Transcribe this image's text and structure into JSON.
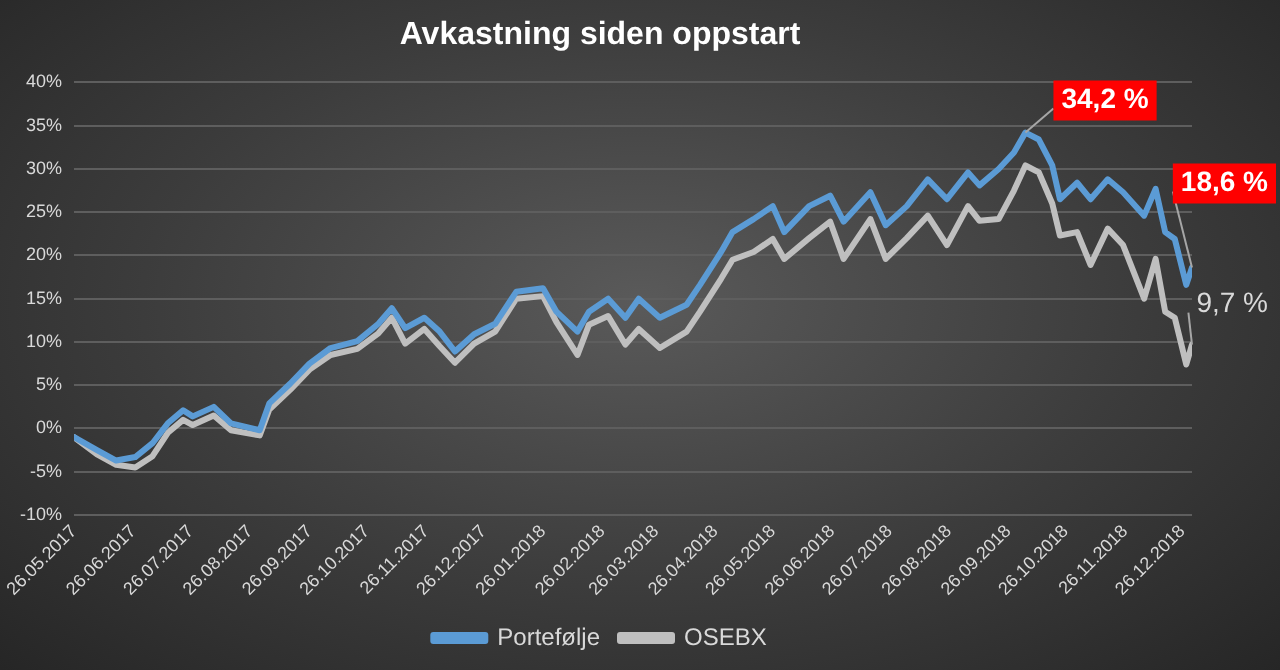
{
  "chart_data": {
    "type": "line",
    "title": "Avkastning siden oppstart",
    "x": [
      "2017-05-26",
      "2017-06-07",
      "2017-06-17",
      "2017-06-27",
      "2017-07-06",
      "2017-07-14",
      "2017-07-22",
      "2017-07-27",
      "2017-08-07",
      "2017-08-16",
      "2017-08-31",
      "2017-09-05",
      "2017-09-16",
      "2017-09-26",
      "2017-10-07",
      "2017-10-21",
      "2017-11-01",
      "2017-11-08",
      "2017-11-15",
      "2017-11-25",
      "2017-12-03",
      "2017-12-11",
      "2017-12-21",
      "2018-01-01",
      "2018-01-12",
      "2018-01-26",
      "2018-02-02",
      "2018-02-13",
      "2018-02-19",
      "2018-03-01",
      "2018-03-10",
      "2018-03-17",
      "2018-03-28",
      "2018-04-11",
      "2018-04-18",
      "2018-04-29",
      "2018-05-05",
      "2018-05-16",
      "2018-05-26",
      "2018-06-01",
      "2018-06-14",
      "2018-06-25",
      "2018-07-02",
      "2018-07-16",
      "2018-07-24",
      "2018-08-04",
      "2018-08-15",
      "2018-08-25",
      "2018-09-05",
      "2018-09-11",
      "2018-09-21",
      "2018-09-29",
      "2018-10-05",
      "2018-10-12",
      "2018-10-19",
      "2018-10-23",
      "2018-11-01",
      "2018-11-08",
      "2018-11-17",
      "2018-11-25",
      "2018-12-06",
      "2018-12-12",
      "2018-12-17",
      "2018-12-22",
      "2018-12-28",
      "2018-12-31"
    ],
    "series": [
      {
        "name": "Portefølje",
        "color": "#5b9bd5",
        "values": [
          -1.0,
          -2.5,
          -3.7,
          -3.3,
          -1.7,
          0.6,
          2.1,
          1.4,
          2.5,
          0.6,
          -0.2,
          2.9,
          5.2,
          7.5,
          9.3,
          10.1,
          12.1,
          13.9,
          11.6,
          12.8,
          11.2,
          8.9,
          10.9,
          12.1,
          15.8,
          16.2,
          13.5,
          11.2,
          13.5,
          15.0,
          12.8,
          15.0,
          12.8,
          14.3,
          16.6,
          20.4,
          22.7,
          24.2,
          25.7,
          22.7,
          25.7,
          26.9,
          23.9,
          27.3,
          23.5,
          25.7,
          28.8,
          26.5,
          29.6,
          28.1,
          30.0,
          31.9,
          34.2,
          33.4,
          30.4,
          26.5,
          28.4,
          26.5,
          28.8,
          27.3,
          24.6,
          27.7,
          22.7,
          21.9,
          16.6,
          18.6
        ]
      },
      {
        "name": "OSEBX",
        "color": "#bfbfbf",
        "values": [
          -1.0,
          -3.0,
          -4.2,
          -4.5,
          -3.2,
          -0.5,
          1.0,
          0.4,
          1.5,
          -0.2,
          -0.8,
          2.2,
          4.5,
          6.8,
          8.5,
          9.2,
          11.0,
          12.8,
          9.8,
          11.5,
          9.5,
          7.6,
          9.8,
          11.2,
          15.0,
          15.3,
          12.3,
          8.5,
          12.0,
          13.0,
          9.7,
          11.5,
          9.3,
          11.2,
          13.5,
          17.3,
          19.5,
          20.4,
          21.9,
          19.6,
          22.0,
          23.9,
          19.6,
          24.2,
          19.6,
          22.0,
          24.6,
          21.2,
          25.7,
          24.0,
          24.2,
          27.5,
          30.4,
          29.6,
          26.0,
          22.3,
          22.7,
          18.9,
          23.1,
          21.2,
          15.0,
          19.6,
          13.5,
          12.8,
          7.4,
          9.7
        ]
      }
    ],
    "xlim": [
      "2017-05-26",
      "2018-12-31"
    ],
    "xticks": [
      {
        "value": "2017-05-26",
        "label": "26.05.2017"
      },
      {
        "value": "2017-06-26",
        "label": "26.06.2017"
      },
      {
        "value": "2017-07-26",
        "label": "26.07.2017"
      },
      {
        "value": "2017-08-26",
        "label": "26.08.2017"
      },
      {
        "value": "2017-09-26",
        "label": "26.09.2017"
      },
      {
        "value": "2017-10-26",
        "label": "26.10.2017"
      },
      {
        "value": "2017-11-26",
        "label": "26.11.2017"
      },
      {
        "value": "2017-12-26",
        "label": "26.12.2017"
      },
      {
        "value": "2018-01-26",
        "label": "26.01.2018"
      },
      {
        "value": "2018-02-26",
        "label": "26.02.2018"
      },
      {
        "value": "2018-03-26",
        "label": "26.03.2018"
      },
      {
        "value": "2018-04-26",
        "label": "26.04.2018"
      },
      {
        "value": "2018-05-26",
        "label": "26.05.2018"
      },
      {
        "value": "2018-06-26",
        "label": "26.06.2018"
      },
      {
        "value": "2018-07-26",
        "label": "26.07.2018"
      },
      {
        "value": "2018-08-26",
        "label": "26.08.2018"
      },
      {
        "value": "2018-09-26",
        "label": "26.09.2018"
      },
      {
        "value": "2018-10-26",
        "label": "26.10.2018"
      },
      {
        "value": "2018-11-26",
        "label": "26.11.2018"
      },
      {
        "value": "2018-12-26",
        "label": "26.12.2018"
      }
    ],
    "ylim": [
      -10,
      40
    ],
    "yticks": [
      {
        "value": -10,
        "label": "-10%"
      },
      {
        "value": -5,
        "label": "-5%"
      },
      {
        "value": 0,
        "label": "0%"
      },
      {
        "value": 5,
        "label": "5%"
      },
      {
        "value": 10,
        "label": "10%"
      },
      {
        "value": 15,
        "label": "15%"
      },
      {
        "value": 20,
        "label": "20%"
      },
      {
        "value": 25,
        "label": "25%"
      },
      {
        "value": 30,
        "label": "30%"
      },
      {
        "value": 35,
        "label": "35%"
      },
      {
        "value": 40,
        "label": "40%"
      }
    ],
    "annotations": [
      {
        "text": "34,2 %",
        "x": "2018-10-05",
        "y": 34.2
      },
      {
        "text": "18,6 %",
        "x": "2018-12-31",
        "y": 18.6
      },
      {
        "text": "9,7 %",
        "x": "2018-12-31",
        "y": 9.7
      }
    ],
    "grid": "y",
    "legend": "bottom",
    "marker": "none",
    "line_style": "solid"
  }
}
